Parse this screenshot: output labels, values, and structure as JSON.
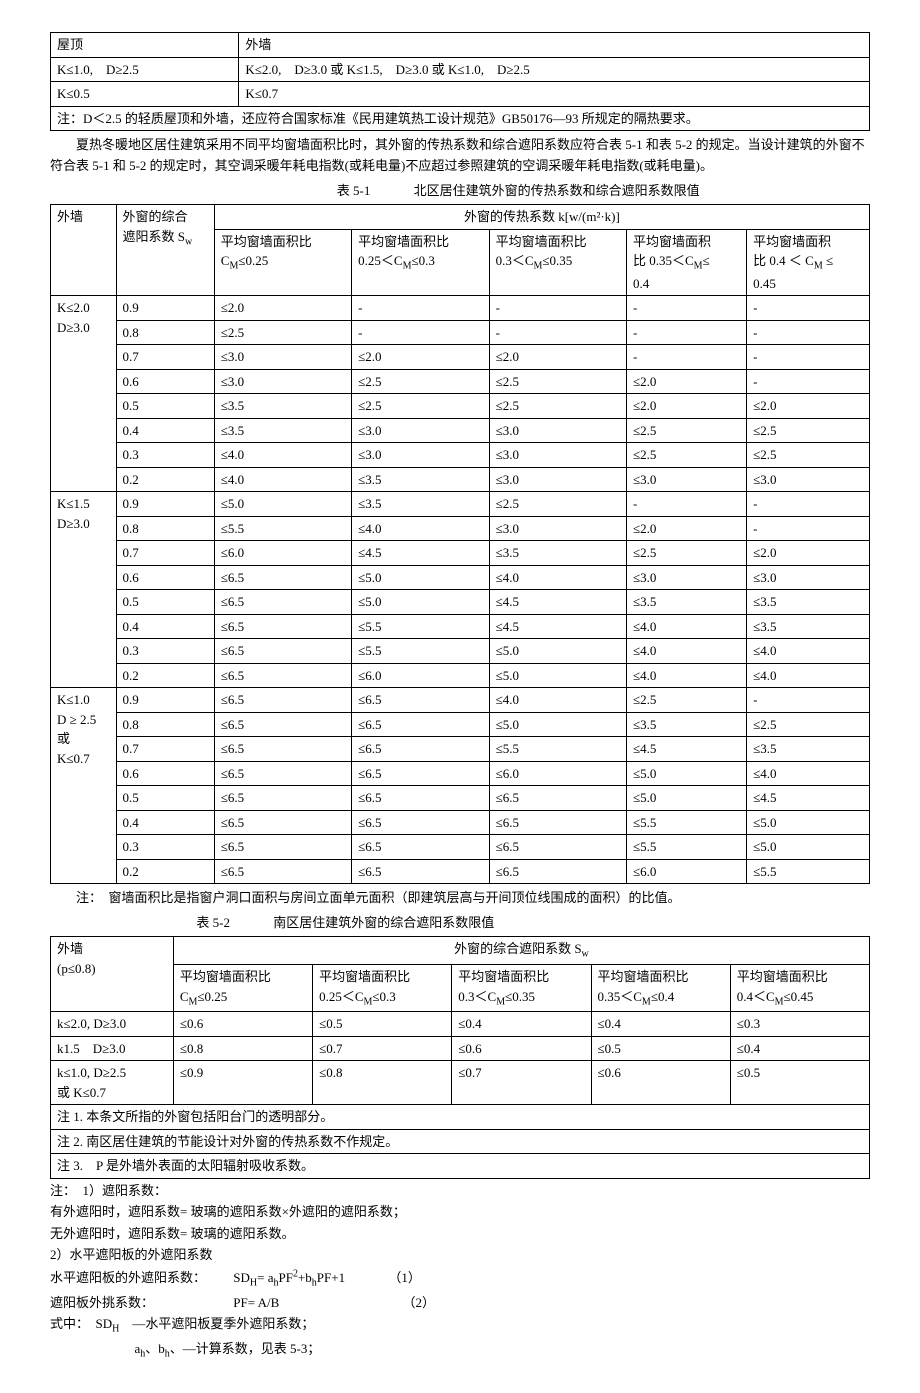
{
  "table0": {
    "r0c0": "屋顶",
    "r0c1": "外墙",
    "r1c0": "K≤1.0,　D≥2.5",
    "r1c1": "K≤2.0,　D≥3.0 或 K≤1.5,　D≥3.0 或 K≤1.0,　D≥2.5",
    "r2c0": "K≤0.5",
    "r2c1": "K≤0.7",
    "note": "注：D＜2.5 的轻质屋顶和外墙，还应符合国家标准《民用建筑热工设计规范》GB50176—93 所规定的隔热要求。"
  },
  "para1": "夏热冬暖地区居住建筑采用不同平均窗墙面积比时，其外窗的传热系数和综合遮阳系数应符合表 5-1 和表 5-2 的规定。当设计建筑的外窗不符合表 5-1 和 5-2 的规定时，其空调采暖年耗电指数(或耗电量)不应超过参照建筑的空调采暖年耗电指数(或耗电量)。",
  "caption1_pre": "表 5-1",
  "caption1": "北区居住建筑外窗的传热系数和综合遮阳系数限值",
  "table1": {
    "h_wall": "外墙",
    "h_sw_l1": "外窗的综合",
    "h_sw_l2": "遮阳系数 Sw",
    "h_k": "外窗的传热系数 k[w/(m²·k)]",
    "h_c1_l1": "平均窗墙面积比",
    "h_c1_l2": "CM≤0.25",
    "h_c2_l1": "平均窗墙面积比",
    "h_c2_l2": "0.25＜CM≤0.3",
    "h_c3_l1": "平均窗墙面积比",
    "h_c3_l2": "0.3＜CM≤0.35",
    "h_c4_l1": "平均窗墙面积",
    "h_c4_l2": "比 0.35＜CM≤",
    "h_c4_l3": "0.4",
    "h_c5_l1": "平均窗墙面积",
    "h_c5_l2": "比 0.4 ＜ CM ≤",
    "h_c5_l3": "0.45",
    "g1_l1": "K≤2.0",
    "g1_l2": "D≥3.0",
    "g2_l1": "K≤1.5",
    "g2_l2": "D≥3.0",
    "g3_l1": "K≤1.0",
    "g3_l2": "D ≥ 2.5",
    "g3_l3": "或",
    "g3_l4": "K≤0.7",
    "rows_g1": [
      [
        "0.9",
        "≤2.0",
        "-",
        "-",
        "-",
        "-"
      ],
      [
        "0.8",
        "≤2.5",
        "-",
        "-",
        "-",
        "-"
      ],
      [
        "0.7",
        "≤3.0",
        "≤2.0",
        "≤2.0",
        "-",
        "-"
      ],
      [
        "0.6",
        "≤3.0",
        "≤2.5",
        "≤2.5",
        "≤2.0",
        "-"
      ],
      [
        "0.5",
        "≤3.5",
        "≤2.5",
        "≤2.5",
        "≤2.0",
        "≤2.0"
      ],
      [
        "0.4",
        "≤3.5",
        "≤3.0",
        "≤3.0",
        "≤2.5",
        "≤2.5"
      ],
      [
        "0.3",
        "≤4.0",
        "≤3.0",
        "≤3.0",
        "≤2.5",
        "≤2.5"
      ],
      [
        "0.2",
        "≤4.0",
        "≤3.5",
        "≤3.0",
        "≤3.0",
        "≤3.0"
      ]
    ],
    "rows_g2": [
      [
        "0.9",
        "≤5.0",
        "≤3.5",
        "≤2.5",
        "-",
        "-"
      ],
      [
        "0.8",
        "≤5.5",
        "≤4.0",
        "≤3.0",
        "≤2.0",
        "-"
      ],
      [
        "0.7",
        "≤6.0",
        "≤4.5",
        "≤3.5",
        "≤2.5",
        "≤2.0"
      ],
      [
        "0.6",
        "≤6.5",
        "≤5.0",
        "≤4.0",
        "≤3.0",
        "≤3.0"
      ],
      [
        "0.5",
        "≤6.5",
        "≤5.0",
        "≤4.5",
        "≤3.5",
        "≤3.5"
      ],
      [
        "0.4",
        "≤6.5",
        "≤5.5",
        "≤4.5",
        "≤4.0",
        "≤3.5"
      ],
      [
        "0.3",
        "≤6.5",
        "≤5.5",
        "≤5.0",
        "≤4.0",
        "≤4.0"
      ],
      [
        "0.2",
        "≤6.5",
        "≤6.0",
        "≤5.0",
        "≤4.0",
        "≤4.0"
      ]
    ],
    "rows_g3": [
      [
        "0.9",
        "≤6.5",
        "≤6.5",
        "≤4.0",
        "≤2.5",
        "-"
      ],
      [
        "0.8",
        "≤6.5",
        "≤6.5",
        "≤5.0",
        "≤3.5",
        "≤2.5"
      ],
      [
        "0.7",
        "≤6.5",
        "≤6.5",
        "≤5.5",
        "≤4.5",
        "≤3.5"
      ],
      [
        "0.6",
        "≤6.5",
        "≤6.5",
        "≤6.0",
        "≤5.0",
        "≤4.0"
      ],
      [
        "0.5",
        "≤6.5",
        "≤6.5",
        "≤6.5",
        "≤5.0",
        "≤4.5"
      ],
      [
        "0.4",
        "≤6.5",
        "≤6.5",
        "≤6.5",
        "≤5.5",
        "≤5.0"
      ],
      [
        "0.3",
        "≤6.5",
        "≤6.5",
        "≤6.5",
        "≤5.5",
        "≤5.0"
      ],
      [
        "0.2",
        "≤6.5",
        "≤6.5",
        "≤6.5",
        "≤6.0",
        "≤5.5"
      ]
    ]
  },
  "note_t1": "注：　窗墙面积比是指窗户洞口面积与房间立面单元面积（即建筑层高与开间顶位线围成的面积）的比值。",
  "caption2_pre": "表 5-2",
  "caption2": "南区居住建筑外窗的综合遮阳系数限值",
  "table2": {
    "h_wall_l1": "外墙",
    "h_wall_l2": "(p≤0.8)",
    "h_sw": "外窗的综合遮阳系数 Sw",
    "h_c1_l1": "平均窗墙面积比",
    "h_c1_l2": "CM≤0.25",
    "h_c2_l1": "平均窗墙面积比",
    "h_c2_l2": "0.25＜CM≤0.3",
    "h_c3_l1": "平均窗墙面积比",
    "h_c3_l2": "0.3＜CM≤0.35",
    "h_c4_l1": "平均窗墙面积比",
    "h_c4_l2": "0.35＜CM≤0.4",
    "h_c5_l1": "平均窗墙面积比",
    "h_c5_l2": "0.4＜CM≤0.45",
    "rows": [
      [
        "k≤2.0, D≥3.0",
        "≤0.6",
        "≤0.5",
        "≤0.4",
        "≤0.4",
        "≤0.3"
      ],
      [
        "k1.5　D≥3.0",
        "≤0.8",
        "≤0.7",
        "≤0.6",
        "≤0.5",
        "≤0.4"
      ],
      [
        "k≤1.0, D≥2.5",
        "≤0.9",
        "≤0.8",
        "≤0.7",
        "≤0.6",
        "≤0.5"
      ]
    ],
    "r3_cont": "或 K≤0.7",
    "note1": "注 1. 本条文所指的外窗包括阳台门的透明部分。",
    "note2": "注 2. 南区居住建筑的节能设计对外窗的传热系数不作规定。",
    "note3": "注 3.　P 是外墙外表面的太阳辐射吸收系数。"
  },
  "notes": {
    "n1": "注：　1）遮阳系数：",
    "n1a": "有外遮阳时，遮阳系数= 玻璃的遮阳系数×外遮阳的遮阳系数；",
    "n1b": "无外遮阳时，遮阳系数= 玻璃的遮阳系数。",
    "n2": "2）水平遮阳板的外遮阳系数",
    "n2a_label": "水平遮阳板的外遮阳系数：",
    "n2a_formula": "SDH= ahPF²+bhPF+1",
    "n2a_eq": "（1）",
    "n2b_label": "遮阳板外挑系数：",
    "n2b_formula": "PF= A/B",
    "n2b_eq": "（2）",
    "n2c": "式中：　SDH　—水平遮阳板夏季外遮阳系数；",
    "n2d": "ah、bh、—计算系数，见表 5-3；"
  }
}
